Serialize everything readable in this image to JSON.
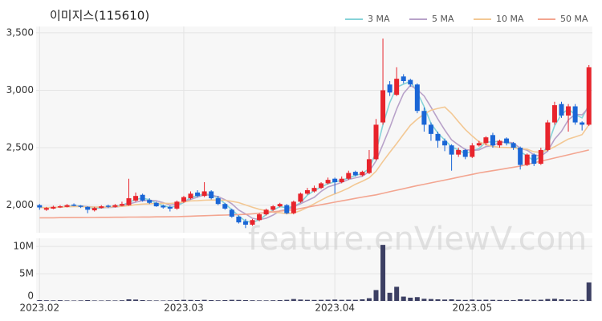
{
  "chart_data": {
    "type": "candlestick",
    "title": "이미지스(115610)",
    "watermark": "feature.enViewV.com",
    "categories": [
      "2023.02",
      null,
      null,
      null,
      null,
      null,
      null,
      null,
      null,
      null,
      null,
      null,
      null,
      null,
      null,
      null,
      null,
      null,
      null,
      null,
      null,
      "2023.03",
      null,
      null,
      null,
      null,
      null,
      null,
      null,
      null,
      null,
      null,
      null,
      null,
      null,
      null,
      null,
      null,
      null,
      null,
      null,
      null,
      null,
      "2023.04",
      null,
      null,
      null,
      null,
      null,
      null,
      null,
      null,
      null,
      null,
      null,
      null,
      null,
      null,
      null,
      null,
      null,
      null,
      null,
      "2023.05",
      null,
      null,
      null,
      null,
      null,
      null,
      null,
      null,
      null,
      null,
      null,
      null,
      null,
      null,
      null,
      null,
      null
    ],
    "open": [
      2000,
      1960,
      1970,
      1980,
      1985,
      2005,
      1995,
      1985,
      1955,
      1975,
      1995,
      1985,
      1995,
      2000,
      2040,
      2090,
      2045,
      2020,
      1995,
      1985,
      1970,
      2030,
      2060,
      2110,
      2080,
      2120,
      2060,
      2010,
      1960,
      1900,
      1860,
      1830,
      1870,
      1920,
      1960,
      1990,
      2000,
      1930,
      2030,
      2100,
      2120,
      2150,
      2190,
      2230,
      2200,
      2230,
      2290,
      2260,
      2280,
      2400,
      2720,
      3050,
      2960,
      3120,
      3090,
      3050,
      2820,
      2700,
      2620,
      2560,
      2520,
      2440,
      2480,
      2420,
      2520,
      2540,
      2610,
      2520,
      2580,
      2540,
      2500,
      2350,
      2440,
      2360,
      2480,
      2720,
      2880,
      2780,
      2860,
      2720,
      2700
    ],
    "high": [
      2010,
      1985,
      1995,
      2000,
      2010,
      2015,
      2000,
      1990,
      1985,
      2000,
      2005,
      2010,
      2030,
      2230,
      2110,
      2100,
      2060,
      2030,
      2005,
      1995,
      2040,
      2080,
      2120,
      2130,
      2200,
      2130,
      2080,
      2020,
      1970,
      1910,
      1880,
      1880,
      1930,
      1970,
      2000,
      2020,
      2010,
      2040,
      2110,
      2150,
      2170,
      2200,
      2240,
      2240,
      2250,
      2300,
      2300,
      2300,
      2480,
      2750,
      3450,
      3080,
      3200,
      3140,
      3100,
      3060,
      2850,
      2720,
      2640,
      2580,
      2530,
      2500,
      2490,
      2540,
      2560,
      2600,
      2630,
      2570,
      2590,
      2550,
      2510,
      2450,
      2450,
      2500,
      2740,
      2900,
      2900,
      2880,
      2880,
      2730,
      3220
    ],
    "low": [
      1960,
      1950,
      1965,
      1975,
      1980,
      1990,
      1975,
      1930,
      1945,
      1970,
      1975,
      1980,
      1990,
      1995,
      2030,
      2030,
      2010,
      1985,
      1970,
      1945,
      1960,
      2020,
      2050,
      2070,
      2070,
      2050,
      2000,
      1960,
      1890,
      1840,
      1800,
      1820,
      1860,
      1910,
      1950,
      1980,
      1920,
      1920,
      2020,
      2090,
      2110,
      2140,
      2180,
      2100,
      2190,
      2220,
      2250,
      2250,
      2270,
      2390,
      2700,
      2950,
      2950,
      3060,
      3030,
      2800,
      2640,
      2560,
      2500,
      2470,
      2300,
      2420,
      2400,
      2410,
      2510,
      2520,
      2500,
      2500,
      2520,
      2480,
      2310,
      2340,
      2340,
      2350,
      2470,
      2700,
      2760,
      2640,
      2700,
      2650,
      2690
    ],
    "close": [
      1980,
      1975,
      1985,
      1990,
      2000,
      1995,
      1985,
      1960,
      1975,
      1990,
      1985,
      2000,
      2010,
      2060,
      2080,
      2040,
      2020,
      1990,
      1980,
      1970,
      2030,
      2070,
      2100,
      2080,
      2120,
      2060,
      2010,
      1970,
      1900,
      1850,
      1830,
      1870,
      1920,
      1960,
      1990,
      2010,
      1930,
      2030,
      2100,
      2130,
      2150,
      2190,
      2220,
      2200,
      2230,
      2280,
      2260,
      2290,
      2400,
      2700,
      3000,
      2980,
      3100,
      3080,
      3050,
      2820,
      2700,
      2620,
      2560,
      2520,
      2440,
      2480,
      2420,
      2520,
      2540,
      2590,
      2520,
      2560,
      2540,
      2500,
      2350,
      2440,
      2360,
      2480,
      2720,
      2870,
      2780,
      2860,
      2720,
      2700,
      3200
    ],
    "volume": [
      150000,
      120000,
      100000,
      130000,
      90000,
      80000,
      100000,
      150000,
      90000,
      80000,
      100000,
      90000,
      120000,
      300000,
      250000,
      150000,
      100000,
      90000,
      80000,
      100000,
      150000,
      200000,
      180000,
      150000,
      200000,
      150000,
      120000,
      150000,
      200000,
      180000,
      150000,
      120000,
      100000,
      100000,
      120000,
      150000,
      200000,
      350000,
      250000,
      200000,
      180000,
      200000,
      220000,
      250000,
      200000,
      220000,
      200000,
      300000,
      500000,
      2000000,
      10300000,
      1500000,
      2600000,
      800000,
      600000,
      700000,
      400000,
      350000,
      300000,
      250000,
      300000,
      200000,
      180000,
      250000,
      200000,
      220000,
      200000,
      180000,
      170000,
      160000,
      300000,
      250000,
      200000,
      220000,
      350000,
      400000,
      300000,
      250000,
      200000,
      200000,
      3400000
    ],
    "up_color": "#e8242c",
    "down_color": "#1a66d6",
    "volume_color": "#3c3f63",
    "series": [
      {
        "name": "3 MA",
        "color": "#86d3d8",
        "values": [
          1980,
          1978,
          1980,
          1983,
          1992,
          1995,
          1993,
          1980,
          1973,
          1975,
          1983,
          1992,
          1998,
          2023,
          2050,
          2060,
          2047,
          2017,
          1997,
          1980,
          1993,
          2023,
          2067,
          2083,
          2100,
          2087,
          2063,
          2013,
          1960,
          1907,
          1860,
          1850,
          1873,
          1917,
          1957,
          1987,
          1977,
          1990,
          2020,
          2087,
          2127,
          2157,
          2187,
          2203,
          2217,
          2237,
          2257,
          2277,
          2317,
          2463,
          2700,
          2893,
          3027,
          3053,
          3077,
          2983,
          2857,
          2713,
          2627,
          2567,
          2507,
          2480,
          2447,
          2473,
          2493,
          2550,
          2550,
          2557,
          2540,
          2533,
          2463,
          2430,
          2383,
          2427,
          2520,
          2690,
          2790,
          2837,
          2787,
          2760,
          2873
        ]
      },
      {
        "name": "5 MA",
        "color": "#b8a2c9",
        "values": [
          1980,
          1978,
          1980,
          1983,
          1986,
          1989,
          1991,
          1986,
          1983,
          1981,
          1979,
          1982,
          1992,
          2009,
          2027,
          2038,
          2042,
          2038,
          2022,
          2000,
          2008,
          2028,
          2050,
          2070,
          2090,
          2086,
          2074,
          2048,
          2012,
          1958,
          1924,
          1886,
          1874,
          1886,
          1914,
          1950,
          1962,
          1984,
          2012,
          2040,
          2068,
          2120,
          2158,
          2178,
          2198,
          2224,
          2238,
          2252,
          2292,
          2386,
          2530,
          2674,
          2836,
          2972,
          3042,
          3006,
          2950,
          2854,
          2750,
          2654,
          2568,
          2524,
          2484,
          2476,
          2480,
          2510,
          2518,
          2546,
          2550,
          2542,
          2494,
          2478,
          2438,
          2426,
          2470,
          2574,
          2642,
          2742,
          2790,
          2786,
          2852
        ]
      },
      {
        "name": "10 MA",
        "color": "#f3c894",
        "values": [
          1980,
          1978,
          1980,
          1983,
          1986,
          1988,
          1987,
          1984,
          1983,
          1984,
          1984,
          1987,
          1989,
          1996,
          2004,
          2009,
          2012,
          2015,
          2016,
          2015,
          2020,
          2027,
          2037,
          2039,
          2043,
          2045,
          2044,
          2042,
          2034,
          2022,
          2002,
          1982,
          1964,
          1952,
          1939,
          1934,
          1926,
          1932,
          1952,
          1980,
          2012,
          2044,
          2074,
          2098,
          2122,
          2149,
          2182,
          2208,
          2238,
          2295,
          2380,
          2459,
          2536,
          2616,
          2695,
          2748,
          2792,
          2826,
          2842,
          2854,
          2798,
          2726,
          2658,
          2602,
          2551,
          2528,
          2510,
          2504,
          2502,
          2500,
          2491,
          2487,
          2464,
          2460,
          2480,
          2508,
          2542,
          2576,
          2594,
          2614,
          2699
        ]
      },
      {
        "name": "50 MA",
        "color": "#f3a590",
        "values": [
          1890,
          1890,
          1890,
          1891,
          1891,
          1892,
          1892,
          1893,
          1893,
          1894,
          1894,
          1895,
          1895,
          1896,
          1896,
          1897,
          1897,
          1898,
          1898,
          1899,
          1900,
          1902,
          1904,
          1906,
          1908,
          1910,
          1912,
          1914,
          1916,
          1918,
          1920,
          1925,
          1930,
          1936,
          1942,
          1948,
          1954,
          1960,
          1971,
          1982,
          1993,
          2004,
          2015,
          2026,
          2037,
          2048,
          2059,
          2070,
          2080,
          2090,
          2103,
          2117,
          2130,
          2143,
          2157,
          2170,
          2182,
          2194,
          2206,
          2218,
          2230,
          2243,
          2256,
          2268,
          2280,
          2290,
          2300,
          2310,
          2320,
          2330,
          2340,
          2354,
          2368,
          2382,
          2396,
          2410,
          2424,
          2438,
          2452,
          2466,
          2480
        ]
      }
    ],
    "ylim": [
      1760,
      3555
    ],
    "yticks": [
      {
        "value": 2000,
        "label": "2,000"
      },
      {
        "value": 2500,
        "label": "2,500"
      },
      {
        "value": 3000,
        "label": "3,000"
      },
      {
        "value": 3500,
        "label": "3,500"
      }
    ],
    "volume_ylim": [
      0,
      11500000
    ],
    "volume_yticks": [
      0,
      {
        "value": 5000000,
        "label": "5M"
      },
      {
        "value": 10000000,
        "label": "10M"
      }
    ],
    "grid": true,
    "legend": "top-right"
  }
}
